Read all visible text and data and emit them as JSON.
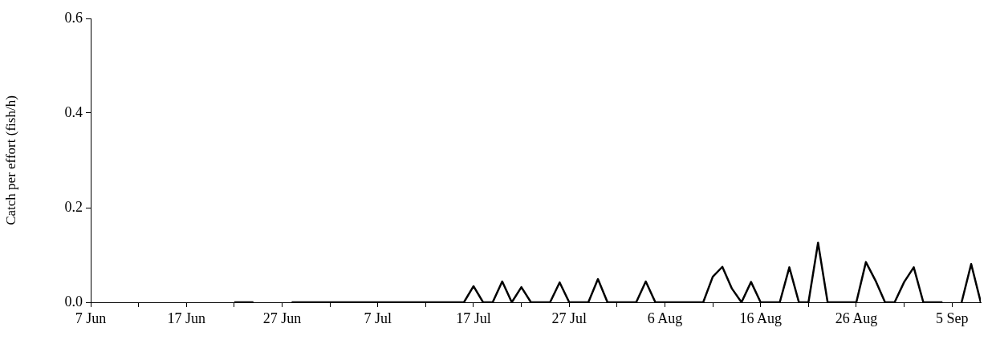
{
  "chart_data": {
    "type": "line",
    "ylabel": "Catch per effort (fish/h)",
    "x": [
      "--06-22",
      "--06-23",
      "--06-24",
      "--06-26",
      "--06-28",
      "--07-16",
      "--07-17",
      "--07-18",
      "--07-19",
      "--07-20",
      "--07-21",
      "--07-22",
      "--07-23",
      "--07-25",
      "--07-26",
      "--07-27",
      "--07-29",
      "--07-30",
      "--07-31",
      "--08-03",
      "--08-04",
      "--08-05",
      "--08-10",
      "--08-11",
      "--08-12",
      "--08-13",
      "--08-14",
      "--08-15",
      "--08-16",
      "--08-18",
      "--08-19",
      "--08-20",
      "--08-21",
      "--08-22",
      "--08-23",
      "--08-26",
      "--08-27",
      "--08-28",
      "--08-29",
      "--08-30",
      "--08-31",
      "--09-01",
      "--09-02",
      "--09-04",
      "--09-05",
      "--09-06",
      "--09-07",
      "--09-08"
    ],
    "series": [
      {
        "color": "#000000",
        "values": [
          0,
          0,
          0,
          null,
          0,
          0,
          0.034,
          0,
          0,
          0.044,
          0,
          0.032,
          0,
          0,
          0.042,
          0,
          0,
          0.049,
          0,
          0,
          0.044,
          0,
          0,
          0.054,
          0.075,
          0.029,
          0,
          0.043,
          0,
          0,
          0.074,
          0,
          0,
          0.126,
          0,
          0,
          0.085,
          0.046,
          0,
          0,
          0.043,
          0.074,
          0,
          0,
          null,
          0,
          0.081,
          0
        ]
      }
    ],
    "xlim": [
      "--06-07",
      "--09-08"
    ],
    "xticks": [
      {
        "value": "--06-07",
        "label": "7 Jun"
      },
      {
        "value": "--06-12",
        "label": null
      },
      {
        "value": "--06-17",
        "label": "17 Jun"
      },
      {
        "value": "--06-22",
        "label": null
      },
      {
        "value": "--06-27",
        "label": "27 Jun"
      },
      {
        "value": "--07-02",
        "label": null
      },
      {
        "value": "--07-07",
        "label": "7 Jul"
      },
      {
        "value": "--07-12",
        "label": null
      },
      {
        "value": "--07-17",
        "label": "17 Jul"
      },
      {
        "value": "--07-22",
        "label": null
      },
      {
        "value": "--07-27",
        "label": "27 Jul"
      },
      {
        "value": "--08-01",
        "label": null
      },
      {
        "value": "--08-06",
        "label": "6 Aug"
      },
      {
        "value": "--08-11",
        "label": null
      },
      {
        "value": "--08-16",
        "label": "16 Aug"
      },
      {
        "value": "--08-21",
        "label": null
      },
      {
        "value": "--08-26",
        "label": "26 Aug"
      },
      {
        "value": "--08-31",
        "label": null
      },
      {
        "value": "--09-05",
        "label": "5 Sep"
      }
    ],
    "ylim": [
      0,
      0.6
    ],
    "yticks": [
      {
        "value": 0,
        "label": "0.0"
      },
      {
        "value": 0.2,
        "label": "0.2"
      },
      {
        "value": 0.4,
        "label": "0.4"
      },
      {
        "value": 0.6,
        "label": "0.6"
      }
    ],
    "grid": false,
    "legend": false,
    "marker": "none",
    "line_style": "solid"
  }
}
